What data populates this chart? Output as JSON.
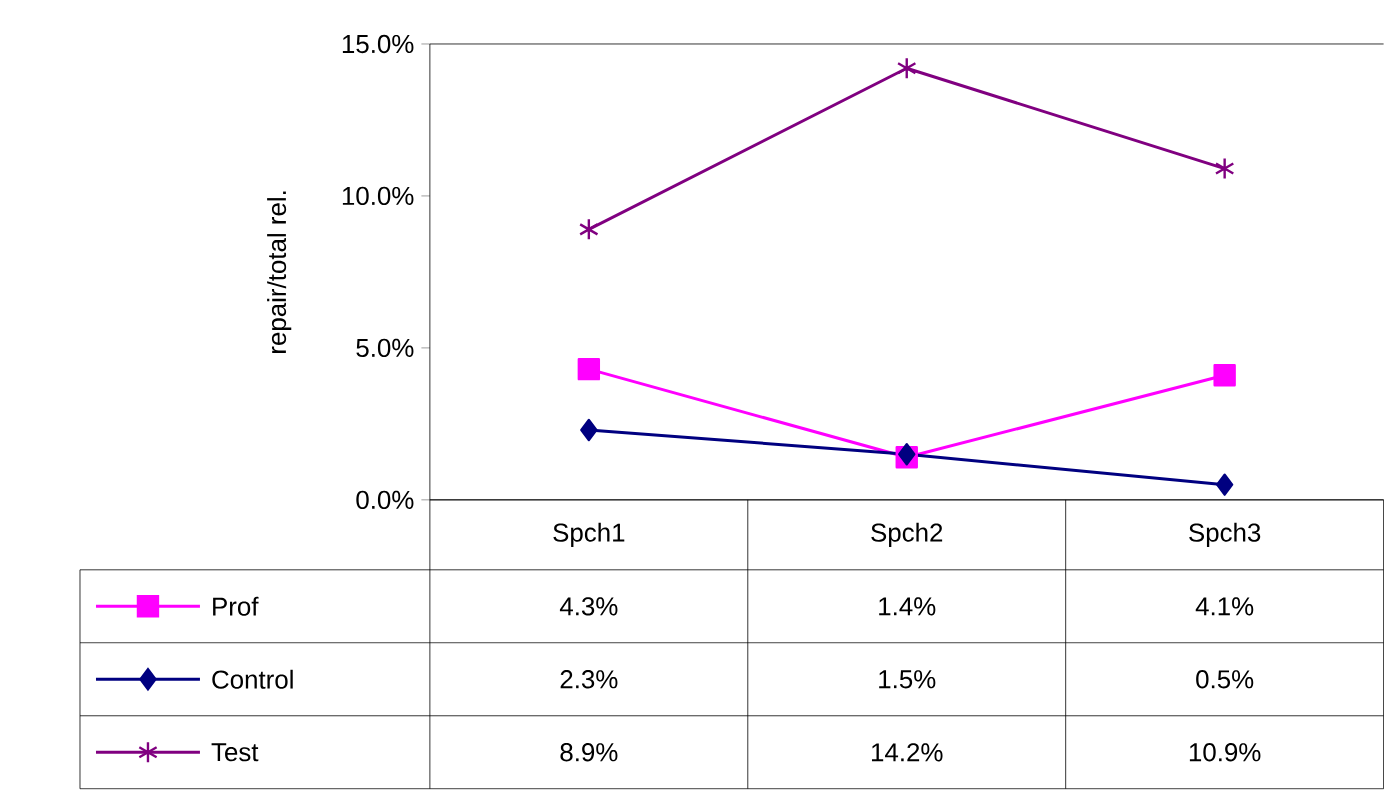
{
  "chart_data": {
    "type": "line",
    "ylabel": "repair/total rel.",
    "categories": [
      "Spch1",
      "Spch2",
      "Spch3"
    ],
    "ylim": [
      0,
      15
    ],
    "yticks": [
      {
        "value": 0,
        "label": "0.0%"
      },
      {
        "value": 5,
        "label": "5.0%"
      },
      {
        "value": 10,
        "label": "10.0%"
      },
      {
        "value": 15,
        "label": "15.0%"
      }
    ],
    "grid": false,
    "legend": "bottom left",
    "line_style": "solid",
    "series": [
      {
        "name": "Prof",
        "color": "#ff00ff",
        "marker": "square",
        "values": [
          4.3,
          1.4,
          4.1
        ],
        "value_labels": [
          "4.3%",
          "1.4%",
          "4.1%"
        ]
      },
      {
        "name": "Control",
        "color": "#000080",
        "marker": "diamond",
        "values": [
          2.3,
          1.5,
          0.5
        ],
        "value_labels": [
          "2.3%",
          "1.5%",
          "0.5%"
        ]
      },
      {
        "name": "Test",
        "color": "#800080",
        "marker": "cross",
        "values": [
          8.9,
          14.2,
          10.9
        ],
        "value_labels": [
          "8.9%",
          "14.2%",
          "10.9%"
        ]
      }
    ]
  }
}
